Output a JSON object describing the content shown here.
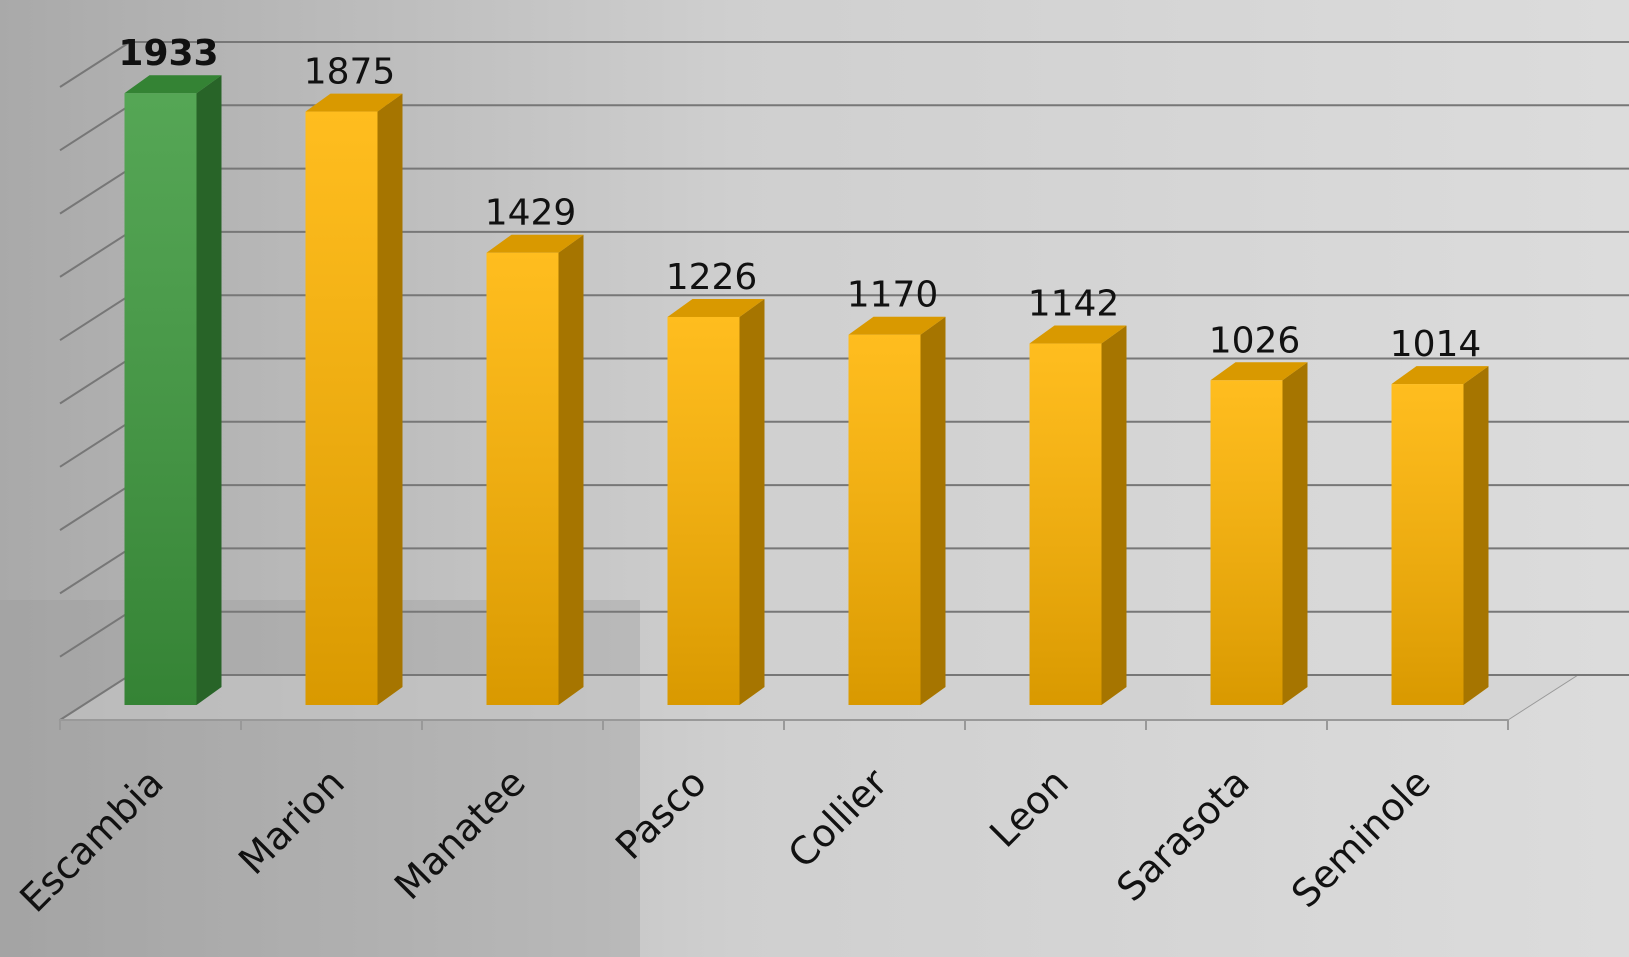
{
  "chart_data": {
    "type": "bar3d",
    "categories": [
      "Escambia",
      "Marion",
      "Manatee",
      "Pasco",
      "Collier",
      "Leon",
      "Sarasota",
      "Seminole"
    ],
    "values": [
      1933,
      1875,
      1429,
      1226,
      1170,
      1142,
      1026,
      1014
    ],
    "colors": [
      "#3e9a3e",
      "#ffb400",
      "#ffb400",
      "#ffb400",
      "#ffb400",
      "#ffb400",
      "#ffb400",
      "#ffb400"
    ],
    "ylim": [
      0,
      2000
    ],
    "yticks": [
      0,
      200,
      400,
      600,
      800,
      1000,
      1200,
      1400,
      1600,
      1800,
      2000
    ],
    "grid": true
  }
}
